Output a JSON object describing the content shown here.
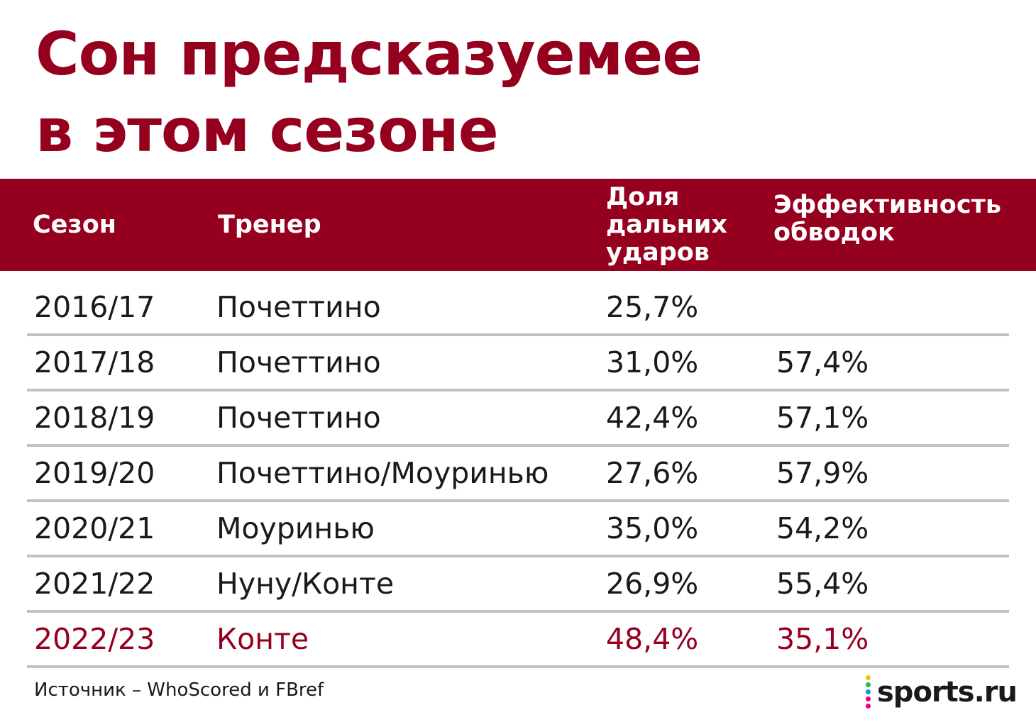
{
  "title": {
    "line1": "Сон предсказуемее",
    "line2": "в этом сезоне"
  },
  "chart_data": {
    "type": "table",
    "columns": [
      {
        "label": "Сезон"
      },
      {
        "label": "Тренер"
      },
      {
        "label_lines": [
          "Доля",
          "дальних",
          "ударов"
        ]
      },
      {
        "label_lines": [
          "Эффективность",
          "обводок"
        ]
      }
    ],
    "rows": [
      {
        "season": "2016/17",
        "coach": "Почеттино",
        "long_shots": "25,7%",
        "dribbles": ""
      },
      {
        "season": "2017/18",
        "coach": "Почеттино",
        "long_shots": "31,0%",
        "dribbles": "57,4%"
      },
      {
        "season": "2018/19",
        "coach": "Почеттино",
        "long_shots": "42,4%",
        "dribbles": "57,1%"
      },
      {
        "season": "2019/20",
        "coach": "Почеттино/Моуринью",
        "long_shots": "27,6%",
        "dribbles": "57,9%"
      },
      {
        "season": "2020/21",
        "coach": "Моуринью",
        "long_shots": "35,0%",
        "dribbles": "54,2%"
      },
      {
        "season": "2021/22",
        "coach": "Нуну/Конте",
        "long_shots": "26,9%",
        "dribbles": "55,4%"
      },
      {
        "season": "2022/23",
        "coach": "Конте",
        "long_shots": "48,4%",
        "dribbles": "35,1%",
        "highlighted": true
      }
    ],
    "colors": {
      "accent": "#96001f",
      "text": "#1a1a1a",
      "divider": "#c2c2c2"
    }
  },
  "footer": {
    "source": "Источник – WhoScored и FBref",
    "logo_text": "sports.ru",
    "logo_icon": "sports-ru-dots-icon"
  }
}
